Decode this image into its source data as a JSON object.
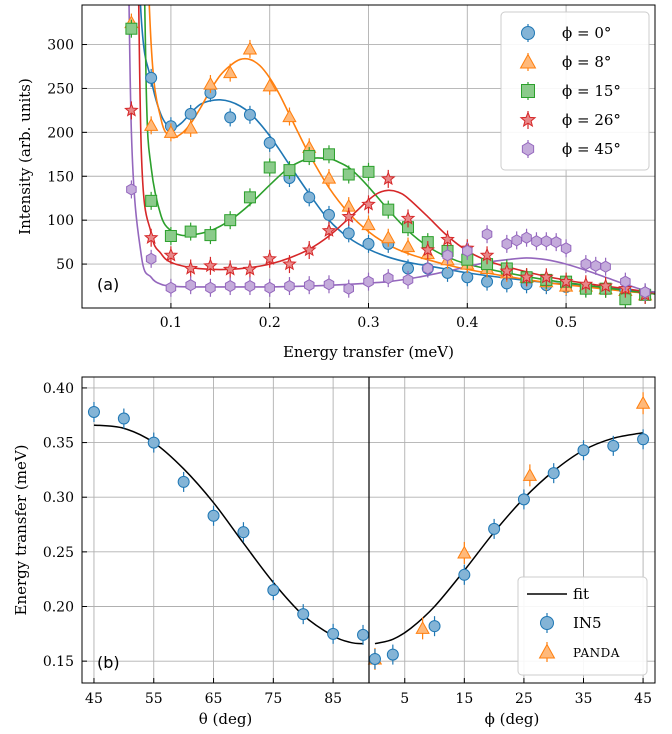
{
  "chart_data": [
    {
      "type": "scatter",
      "panel_label": "(a)",
      "xlabel": "Energy transfer (meV)",
      "ylabel": "Intensity (arb. units)",
      "xlim": [
        0.01,
        0.59
      ],
      "ylim": [
        0,
        345
      ],
      "xticks": [
        0.1,
        0.2,
        0.3,
        0.4,
        0.5
      ],
      "xtick_labels": [
        "0.1",
        "0.2",
        "0.3",
        "0.4",
        "0.5"
      ],
      "yticks": [
        50,
        100,
        150,
        200,
        250,
        300
      ],
      "ytick_labels": [
        "50",
        "100",
        "150",
        "200",
        "250",
        "300"
      ],
      "grid": true,
      "legend_position": "top-right",
      "series": [
        {
          "name": "ϕ = 0°",
          "color": "#1f77b4",
          "marker": "circle",
          "x": [
            0.08,
            0.1,
            0.12,
            0.14,
            0.16,
            0.18,
            0.2,
            0.22,
            0.24,
            0.26,
            0.28,
            0.3,
            0.32,
            0.34,
            0.36,
            0.38,
            0.4,
            0.42,
            0.44,
            0.46,
            0.48,
            0.5,
            0.52,
            0.54,
            0.56,
            0.58
          ],
          "y": [
            262,
            207,
            221,
            245,
            217,
            220,
            188,
            148,
            126,
            106,
            85,
            73,
            73,
            45,
            45,
            40,
            35,
            30,
            28,
            27,
            26,
            24,
            23,
            22,
            20,
            17
          ],
          "fit_x": [
            0.06,
            0.07,
            0.08,
            0.09,
            0.1,
            0.11,
            0.12,
            0.13,
            0.14,
            0.15,
            0.16,
            0.17,
            0.18,
            0.19,
            0.2,
            0.21,
            0.22,
            0.24,
            0.26,
            0.28,
            0.3,
            0.32,
            0.34,
            0.36,
            0.38,
            0.4,
            0.44,
            0.48,
            0.52,
            0.56,
            0.59
          ],
          "fit_y": [
            600,
            330,
            260,
            220,
            205,
            210,
            222,
            232,
            236,
            237,
            235,
            230,
            222,
            210,
            196,
            180,
            163,
            130,
            100,
            80,
            67,
            58,
            52,
            48,
            44,
            40,
            34,
            29,
            25,
            21,
            18
          ]
        },
        {
          "name": "ϕ = 8°",
          "color": "#ff7f0e",
          "marker": "triangle",
          "x": [
            0.06,
            0.08,
            0.1,
            0.12,
            0.14,
            0.16,
            0.18,
            0.2,
            0.22,
            0.24,
            0.26,
            0.28,
            0.3,
            0.32,
            0.34,
            0.36,
            0.38,
            0.4,
            0.42,
            0.44,
            0.46,
            0.48,
            0.5,
            0.52,
            0.54,
            0.56,
            0.58
          ],
          "y": [
            325,
            208,
            200,
            205,
            255,
            268,
            295,
            253,
            218,
            183,
            148,
            116,
            95,
            80,
            70,
            62,
            55,
            50,
            45,
            40,
            35,
            30,
            25,
            25,
            22,
            20,
            15
          ],
          "fit_x": [
            0.07,
            0.08,
            0.09,
            0.1,
            0.11,
            0.12,
            0.13,
            0.14,
            0.15,
            0.16,
            0.17,
            0.18,
            0.19,
            0.2,
            0.21,
            0.22,
            0.23,
            0.24,
            0.26,
            0.28,
            0.3,
            0.32,
            0.34,
            0.36,
            0.38,
            0.4,
            0.44,
            0.48,
            0.52,
            0.56,
            0.59
          ],
          "fit_y": [
            600,
            300,
            215,
            195,
            198,
            210,
            228,
            248,
            265,
            276,
            283,
            283,
            276,
            262,
            243,
            220,
            197,
            175,
            137,
            108,
            87,
            72,
            62,
            55,
            49,
            44,
            36,
            29,
            24,
            19,
            16
          ]
        },
        {
          "name": "ϕ = 15°",
          "color": "#2ca02c",
          "marker": "square",
          "x": [
            0.06,
            0.08,
            0.1,
            0.12,
            0.14,
            0.16,
            0.18,
            0.2,
            0.22,
            0.24,
            0.26,
            0.28,
            0.3,
            0.32,
            0.34,
            0.36,
            0.38,
            0.4,
            0.42,
            0.44,
            0.46,
            0.48,
            0.5,
            0.52,
            0.54,
            0.56,
            0.58
          ],
          "y": [
            318,
            122,
            82,
            87,
            83,
            100,
            126,
            160,
            157,
            173,
            175,
            152,
            155,
            112,
            92,
            75,
            65,
            55,
            50,
            45,
            35,
            32,
            30,
            22,
            22,
            10,
            15
          ],
          "fit_x": [
            0.07,
            0.075,
            0.08,
            0.09,
            0.1,
            0.11,
            0.12,
            0.14,
            0.16,
            0.18,
            0.2,
            0.22,
            0.24,
            0.26,
            0.27,
            0.28,
            0.29,
            0.3,
            0.32,
            0.34,
            0.36,
            0.38,
            0.4,
            0.44,
            0.48,
            0.52,
            0.56,
            0.59
          ],
          "fit_y": [
            600,
            250,
            160,
            105,
            88,
            83,
            83,
            88,
            100,
            118,
            140,
            160,
            170,
            170,
            166,
            160,
            150,
            138,
            112,
            88,
            70,
            58,
            50,
            40,
            32,
            26,
            20,
            16
          ]
        },
        {
          "name": "ϕ = 26°",
          "color": "#d62728",
          "marker": "star",
          "x": [
            0.06,
            0.08,
            0.1,
            0.12,
            0.14,
            0.16,
            0.18,
            0.2,
            0.22,
            0.24,
            0.26,
            0.28,
            0.3,
            0.32,
            0.34,
            0.36,
            0.38,
            0.4,
            0.42,
            0.44,
            0.46,
            0.48,
            0.5,
            0.52,
            0.54,
            0.56,
            0.58
          ],
          "y": [
            225,
            80,
            60,
            45,
            48,
            44,
            44,
            56,
            50,
            66,
            88,
            104,
            118,
            147,
            102,
            66,
            78,
            68,
            60,
            42,
            35,
            35,
            30,
            27,
            25,
            22,
            15
          ],
          "fit_x": [
            0.065,
            0.07,
            0.08,
            0.09,
            0.1,
            0.12,
            0.14,
            0.16,
            0.18,
            0.2,
            0.22,
            0.24,
            0.26,
            0.28,
            0.3,
            0.31,
            0.32,
            0.33,
            0.34,
            0.36,
            0.38,
            0.4,
            0.42,
            0.44,
            0.48,
            0.52,
            0.56,
            0.59
          ],
          "fit_y": [
            600,
            180,
            85,
            62,
            52,
            46,
            44,
            44,
            46,
            50,
            57,
            67,
            82,
            102,
            123,
            131,
            134,
            132,
            125,
            104,
            82,
            65,
            54,
            47,
            36,
            28,
            22,
            17
          ]
        },
        {
          "name": "ϕ = 45°",
          "color": "#9467bd",
          "marker": "hexagon",
          "x": [
            0.06,
            0.08,
            0.1,
            0.12,
            0.14,
            0.16,
            0.18,
            0.2,
            0.22,
            0.24,
            0.26,
            0.28,
            0.3,
            0.32,
            0.34,
            0.36,
            0.38,
            0.4,
            0.42,
            0.44,
            0.45,
            0.46,
            0.47,
            0.48,
            0.49,
            0.5,
            0.52,
            0.53,
            0.54,
            0.56,
            0.58
          ],
          "y": [
            135,
            56,
            23,
            26,
            23,
            25,
            25,
            23,
            25,
            26,
            27,
            22,
            30,
            34,
            32,
            45,
            60,
            65,
            84,
            73,
            77,
            80,
            76,
            76,
            75,
            68,
            50,
            48,
            47,
            30,
            18
          ],
          "fit_x": [
            0.055,
            0.06,
            0.07,
            0.08,
            0.09,
            0.1,
            0.12,
            0.16,
            0.2,
            0.24,
            0.28,
            0.32,
            0.35,
            0.38,
            0.4,
            0.42,
            0.44,
            0.46,
            0.48,
            0.5,
            0.52,
            0.54,
            0.56,
            0.58,
            0.59
          ],
          "fit_y": [
            600,
            200,
            60,
            35,
            27,
            25,
            24,
            24,
            24,
            25,
            27,
            30,
            35,
            42,
            47,
            52,
            55,
            57,
            55,
            50,
            43,
            35,
            27,
            20,
            18
          ]
        }
      ]
    },
    {
      "type": "scatter",
      "panel_label": "(b)",
      "ylabel": "Energy transfer (meV)",
      "ylim": [
        0.13,
        0.41
      ],
      "yticks": [
        0.15,
        0.2,
        0.25,
        0.3,
        0.35,
        0.4
      ],
      "ytick_labels": [
        "0.15",
        "0.20",
        "0.25",
        "0.30",
        "0.35",
        "0.40"
      ],
      "grid": true,
      "legend_position": "bottom-right",
      "left": {
        "xlabel": "θ (deg)",
        "xlim": [
          43,
          91
        ],
        "reversed": false,
        "xticks": [
          45,
          55,
          65,
          75,
          85
        ],
        "xtick_labels": [
          "45",
          "55",
          "65",
          "75",
          "85"
        ],
        "in5_x": [
          45,
          50,
          55,
          60,
          65,
          70,
          75,
          80,
          85,
          90
        ],
        "in5_y": [
          0.378,
          0.372,
          0.35,
          0.314,
          0.283,
          0.268,
          0.215,
          0.193,
          0.175,
          0.174
        ],
        "fit_x": [
          45,
          50,
          55,
          60,
          65,
          70,
          75,
          80,
          85,
          88,
          90
        ],
        "fit_y": [
          0.366,
          0.363,
          0.35,
          0.326,
          0.295,
          0.258,
          0.222,
          0.192,
          0.173,
          0.167,
          0.166
        ]
      },
      "right": {
        "xlabel": "ϕ (deg)",
        "xlim": [
          -1,
          47
        ],
        "xticks": [
          5,
          15,
          25,
          35,
          45
        ],
        "xtick_labels": [
          "5",
          "15",
          "25",
          "35",
          "45"
        ],
        "in5_x": [
          0,
          3,
          10,
          15,
          20,
          25,
          30,
          35,
          40,
          45
        ],
        "in5_y": [
          0.152,
          0.156,
          0.182,
          0.229,
          0.271,
          0.298,
          0.322,
          0.343,
          0.347,
          0.353
        ],
        "panda_x": [
          0,
          8,
          15,
          26,
          45
        ],
        "panda_y": [
          0.152,
          0.18,
          0.249,
          0.32,
          0.386
        ],
        "fit_x": [
          0,
          3,
          6,
          10,
          15,
          20,
          25,
          30,
          35,
          40,
          45
        ],
        "fit_y": [
          0.166,
          0.17,
          0.18,
          0.2,
          0.233,
          0.268,
          0.299,
          0.324,
          0.343,
          0.354,
          0.359
        ]
      },
      "legend": [
        "fit",
        "IN5",
        "PANDA"
      ],
      "colors": {
        "in5": "#1f77b4",
        "panda": "#ff7f0e",
        "fit": "#000000"
      }
    }
  ]
}
